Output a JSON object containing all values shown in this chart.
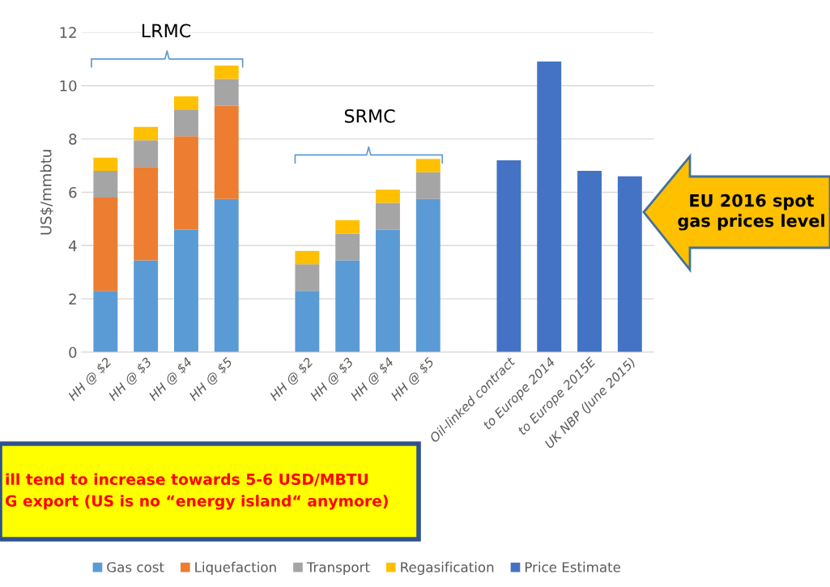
{
  "chart_data": {
    "type": "bar",
    "stacked": true,
    "ylabel": "US$/mmbtu",
    "categories": [
      "HH @ $2",
      "HH @ $3",
      "HH @ $4",
      "HH @ $5",
      null,
      "HH @ $2",
      "HH @ $3",
      "HH @ $4",
      "HH @ $5",
      null,
      "Oil-linked contract",
      "to Europe 2014",
      "to Europe 2015E",
      "UK NBP (June 2015)"
    ],
    "series": [
      {
        "name": "Gas cost",
        "color": "#5b9bd5",
        "values": [
          2.3,
          3.45,
          4.6,
          5.75,
          null,
          2.3,
          3.45,
          4.6,
          5.75,
          null,
          null,
          null,
          null,
          null
        ]
      },
      {
        "name": "Liquefaction",
        "color": "#ed7d31",
        "values": [
          3.5,
          3.5,
          3.5,
          3.5,
          null,
          null,
          null,
          null,
          null,
          null,
          null,
          null,
          null,
          null
        ]
      },
      {
        "name": "Transport",
        "color": "#a5a5a5",
        "values": [
          1.0,
          1.0,
          1.0,
          1.0,
          null,
          1.0,
          1.0,
          1.0,
          1.0,
          null,
          null,
          null,
          null,
          null
        ]
      },
      {
        "name": "Regasification",
        "color": "#ffc000",
        "values": [
          0.5,
          0.5,
          0.5,
          0.5,
          null,
          0.5,
          0.5,
          0.5,
          0.5,
          null,
          null,
          null,
          null,
          null
        ]
      },
      {
        "name": "Price Estimate",
        "color": "#4472c4",
        "values": [
          null,
          null,
          null,
          null,
          null,
          null,
          null,
          null,
          null,
          null,
          7.2,
          10.9,
          6.8,
          6.6
        ]
      }
    ],
    "ylim": [
      0,
      12
    ],
    "yticks": [
      0,
      2,
      4,
      6,
      8,
      10,
      12
    ],
    "grid": "y",
    "legend": "bottom",
    "annotations": [
      "LRMC",
      "SRMC",
      "EU 2016 spot gas prices level",
      "ill tend to increase towards 5-6 USD/MBTU\nG export (US is no “energy island“ anymore)"
    ]
  }
}
